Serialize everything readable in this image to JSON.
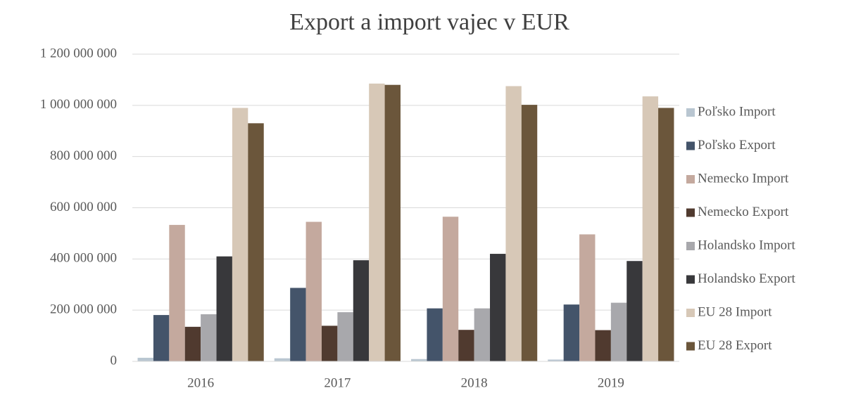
{
  "chart_data": {
    "type": "bar",
    "title": "Export a import vajec v EUR",
    "categories": [
      "2016",
      "2017",
      "2018",
      "2019"
    ],
    "series": [
      {
        "name": "Poľsko Import",
        "color": "#b9c6d1",
        "values": [
          14000000,
          12000000,
          9000000,
          7000000
        ]
      },
      {
        "name": "Poľsko Export",
        "color": "#44546a",
        "values": [
          181000000,
          287000000,
          207000000,
          222000000
        ]
      },
      {
        "name": "Nemecko Import",
        "color": "#c4a99e",
        "values": [
          533000000,
          545000000,
          565000000,
          496000000
        ]
      },
      {
        "name": "Nemecko Export",
        "color": "#503a2f",
        "values": [
          135000000,
          139000000,
          123000000,
          122000000
        ]
      },
      {
        "name": "Holandsko Import",
        "color": "#a8a8ac",
        "values": [
          184000000,
          192000000,
          207000000,
          229000000
        ]
      },
      {
        "name": "Holandsko Export",
        "color": "#38383b",
        "values": [
          410000000,
          395000000,
          420000000,
          392000000
        ]
      },
      {
        "name": "EU 28 Import",
        "color": "#d7c8b7",
        "values": [
          990000000,
          1085000000,
          1075000000,
          1035000000
        ]
      },
      {
        "name": "EU 28 Export",
        "color": "#6b563b",
        "values": [
          930000000,
          1080000000,
          1002000000,
          990000000
        ]
      }
    ],
    "ylim": [
      0,
      1200000000
    ],
    "yticks": [
      0,
      {
        "value": 200000000,
        "label": "200 000 000"
      },
      {
        "value": 400000000,
        "label": "400 000 000"
      },
      {
        "value": 600000000,
        "label": "600 000 000"
      },
      {
        "value": 800000000,
        "label": "800 000 000"
      },
      {
        "value": 1000000000,
        "label": "1 000 000 000"
      },
      {
        "value": 1200000000,
        "label": "1 200 000 000"
      }
    ],
    "grid": true,
    "legend": "right"
  }
}
